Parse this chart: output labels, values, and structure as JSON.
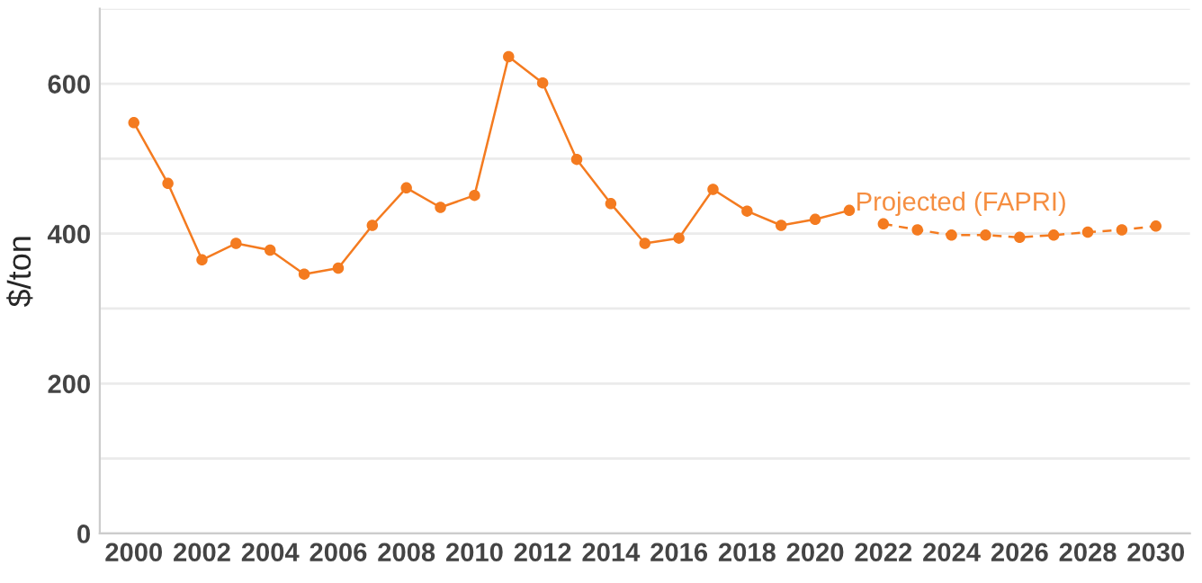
{
  "chart_data": {
    "type": "line",
    "ylabel": "$/ton",
    "series": [
      {
        "color": "#f47b20",
        "line_style": "solid",
        "x": [
          2000,
          2001,
          2002,
          2003,
          2004,
          2005,
          2006,
          2007,
          2008,
          2009,
          2010,
          2011,
          2012,
          2013,
          2014,
          2015,
          2016,
          2017,
          2018,
          2019,
          2020,
          2021
        ],
        "values": [
          548,
          467,
          365,
          387,
          378,
          346,
          354,
          411,
          461,
          435,
          451,
          636,
          601,
          499,
          440,
          387,
          394,
          459,
          430,
          411,
          419,
          431
        ]
      },
      {
        "color": "#f47b20",
        "line_style": "dashed",
        "x": [
          2022,
          2023,
          2024,
          2025,
          2026,
          2027,
          2028,
          2029,
          2030
        ],
        "values": [
          413,
          405,
          398,
          398,
          395,
          398,
          402,
          405,
          410
        ]
      }
    ],
    "annotations": [
      "Projected (FAPRI)"
    ],
    "marker": "circle",
    "xlim": [
      1999,
      2031
    ],
    "xticks": [
      2000,
      2002,
      2004,
      2006,
      2008,
      2010,
      2012,
      2014,
      2016,
      2018,
      2020,
      2022,
      2024,
      2026,
      2028,
      2030
    ],
    "ylim": [
      0,
      700
    ],
    "yticks": [
      0,
      {
        "value": 100,
        "label": null
      },
      200,
      {
        "value": 300,
        "label": null
      },
      400,
      {
        "value": 500,
        "label": null
      },
      600,
      {
        "value": 700,
        "label": null
      }
    ],
    "grid": "y",
    "legend": false
  }
}
